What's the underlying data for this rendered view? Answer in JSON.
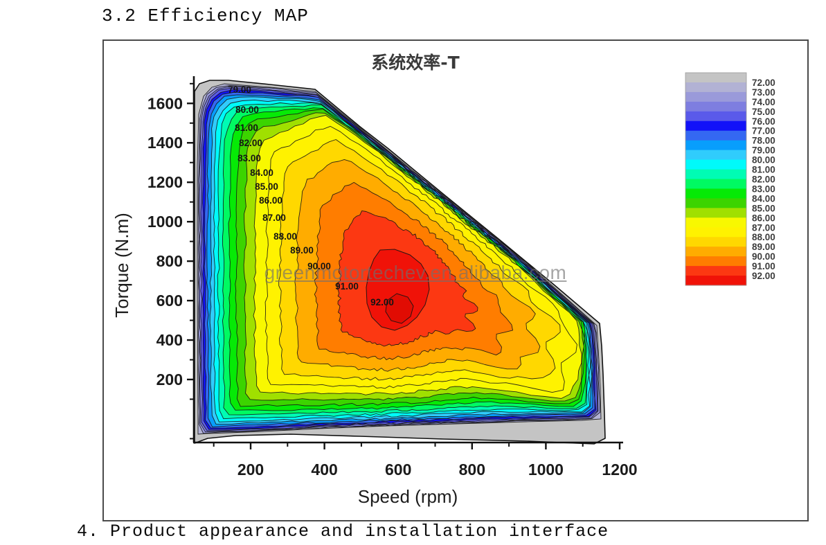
{
  "page": {
    "heading": "3.2 Efficiency MAP",
    "footer": "4. Product appearance and installation interface",
    "watermark": "greenmotortechev.en.alibaba.com"
  },
  "chart_data": {
    "type": "contour",
    "title": "系统效率-T",
    "xlabel": "Speed (rpm)",
    "ylabel": "Torque (N.m)",
    "x_major_ticks": [
      200,
      400,
      600,
      800,
      1000,
      1200
    ],
    "x_minor_ticks": [
      100,
      300,
      500,
      700,
      900,
      1100
    ],
    "y_major_ticks": [
      200,
      400,
      600,
      800,
      1000,
      1200,
      1400,
      1600
    ],
    "y_minor_ticks": [
      -100,
      100,
      300,
      500,
      700,
      900,
      1100,
      1300,
      1500,
      1700
    ],
    "xlim": [
      50,
      1210
    ],
    "ylim": [
      -120,
      1730
    ],
    "grid": false,
    "legend_position": "right-colorbar",
    "levels": [
      72,
      73,
      74,
      75,
      76,
      77,
      78,
      79,
      80,
      81,
      82,
      83,
      84,
      85,
      86,
      87,
      88,
      89,
      90,
      91,
      92
    ],
    "legend_labels": [
      "72.00",
      "73.00",
      "74.00",
      "75.00",
      "76.00",
      "77.00",
      "78.00",
      "79.00",
      "80.00",
      "81.00",
      "82.00",
      "83.00",
      "84.00",
      "85.00",
      "86.00",
      "87.00",
      "88.00",
      "89.00",
      "90.00",
      "91.00",
      "92.00"
    ],
    "level_labels": [
      "79.00",
      "80.00",
      "81.00",
      "82.00",
      "83.00",
      "84.00",
      "85.00",
      "86.00",
      "87.00",
      "88.00",
      "89.00",
      "90.00",
      "91.00",
      "92.00"
    ],
    "palette": [
      "#c4c4c4",
      "#b2b2d4",
      "#9a9ada",
      "#7e7ee0",
      "#5a5aea",
      "#1212f8",
      "#3468f2",
      "#089efc",
      "#30ccfc",
      "#00fafa",
      "#00fcb4",
      "#00fa62",
      "#06ea06",
      "#3cd400",
      "#a0e000",
      "#f8f800",
      "#fff200",
      "#ffd800",
      "#ffac00",
      "#ff7d00",
      "#fc3812",
      "#f01208"
    ],
    "inner_core_color": "#e10c03",
    "envelope_description": "Motor operating envelope: max torque ~1700 N.m up to ~420 rpm, tapering linearly to ~580 N.m at ~1150 rpm max speed",
    "peak": {
      "level": 92,
      "speed_range_rpm": [
        450,
        700
      ],
      "torque_range_nm": [
        450,
        860
      ]
    }
  }
}
